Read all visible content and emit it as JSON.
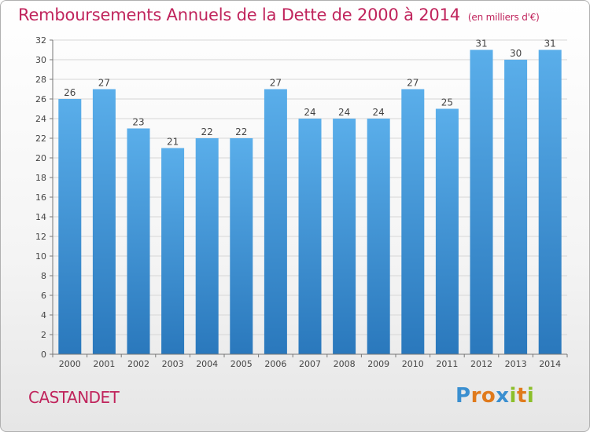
{
  "title": "Remboursements Annuels de la Dette de 2000 à 2014",
  "unit": "(en milliers d'€)",
  "place": "CASTANDET",
  "logo": {
    "text": "Proxiti",
    "letters": [
      {
        "ch": "P",
        "color": "#3a8fd0"
      },
      {
        "ch": "r",
        "color": "#e07a1c"
      },
      {
        "ch": "o",
        "color": "#e07a1c"
      },
      {
        "ch": "x",
        "color": "#3a8fd0"
      },
      {
        "ch": "i",
        "color": "#8cbf2a"
      },
      {
        "ch": "t",
        "color": "#e07a1c"
      },
      {
        "ch": "i",
        "color": "#8cbf2a"
      }
    ]
  },
  "chart_data": {
    "type": "bar",
    "categories": [
      "2000",
      "2001",
      "2002",
      "2003",
      "2004",
      "2005",
      "2006",
      "2007",
      "2008",
      "2009",
      "2010",
      "2011",
      "2012",
      "2013",
      "2014"
    ],
    "values": [
      26,
      27,
      23,
      21,
      22,
      22,
      27,
      24,
      24,
      24,
      27,
      25,
      31,
      30,
      31
    ],
    "ylim": [
      0,
      32
    ],
    "yticks": [
      0,
      2,
      4,
      6,
      8,
      10,
      12,
      14,
      16,
      18,
      20,
      22,
      24,
      26,
      28,
      30,
      32
    ],
    "grid": true,
    "bar_color_top": "#5aaeea",
    "bar_color_bottom": "#2a78bc"
  }
}
